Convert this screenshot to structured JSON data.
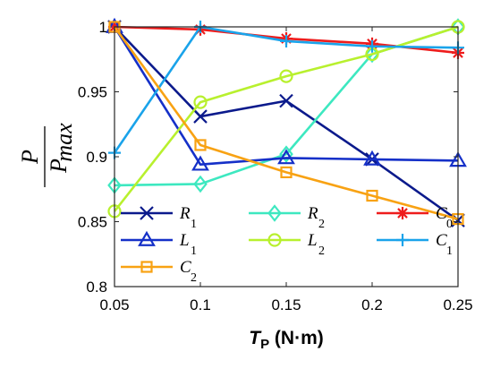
{
  "chart_data": {
    "type": "line",
    "x": [
      0.05,
      0.1,
      0.15,
      0.2,
      0.25
    ],
    "xticks": [
      "0.05",
      "0.1",
      "0.15",
      "0.2",
      "0.25"
    ],
    "yticks": [
      "0.8",
      "0.85",
      "0.9",
      "0.95",
      "1"
    ],
    "xlim": [
      0.05,
      0.25
    ],
    "ylim": [
      0.8,
      1.0
    ],
    "xlabel": {
      "main": "T",
      "sub": "P",
      "unit": " (N·m)"
    },
    "ylabel": {
      "numerator": "P",
      "denominator": "P",
      "denominator_sub": "max"
    },
    "grid": false,
    "legend_placement": "lower-left",
    "series": [
      {
        "name": "R",
        "sub": "1",
        "color": "#0b1a8c",
        "marker": "x",
        "values": [
          1.0,
          0.931,
          0.943,
          0.898,
          0.851
        ]
      },
      {
        "name": "R",
        "sub": "2",
        "color": "#3de8c0",
        "marker": "diamond",
        "values": [
          0.878,
          0.879,
          0.902,
          0.979,
          1.0
        ]
      },
      {
        "name": "C",
        "sub": "0",
        "color": "#ee1c1c",
        "marker": "asterisk",
        "values": [
          1.0,
          0.998,
          0.991,
          0.987,
          0.98
        ]
      },
      {
        "name": "L",
        "sub": "1",
        "color": "#1530c8",
        "marker": "triangle",
        "values": [
          1.0,
          0.894,
          0.899,
          0.898,
          0.897
        ]
      },
      {
        "name": "L",
        "sub": "2",
        "color": "#b8f02e",
        "marker": "circle",
        "values": [
          0.858,
          0.942,
          0.962,
          0.979,
          1.0
        ]
      },
      {
        "name": "C",
        "sub": "1",
        "color": "#1aa3ea",
        "marker": "plus",
        "values": [
          0.903,
          1.0,
          0.989,
          0.985,
          0.984
        ]
      },
      {
        "name": "C",
        "sub": "2",
        "color": "#f8a213",
        "marker": "square",
        "values": [
          1.0,
          0.909,
          0.888,
          0.87,
          0.852
        ]
      }
    ]
  }
}
